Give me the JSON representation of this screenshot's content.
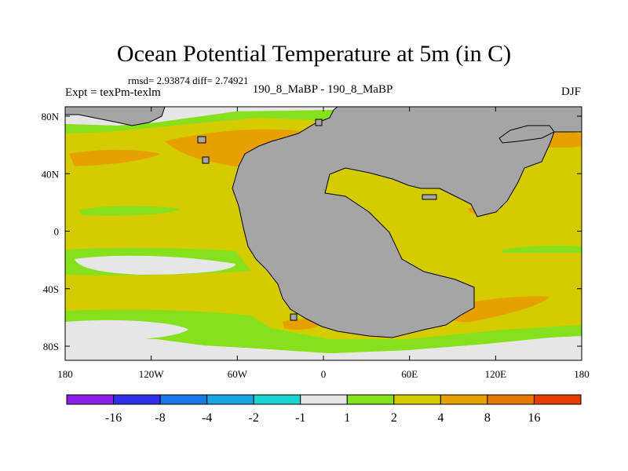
{
  "title": "Ocean Potential Temperature at 5m (in C)",
  "stats": "rmsd= 2.93874 diff= 2.74921",
  "left_label": "Expt = texPm-texlm",
  "center_label": "190_8_MaBP - 190_8_MaBP",
  "season": "DJF",
  "map": {
    "lon_ticks": [
      "180",
      "120W",
      "60W",
      "0",
      "60E",
      "120E",
      "180"
    ],
    "lat_ticks": [
      "80N",
      "40N",
      "0",
      "40S",
      "80S"
    ],
    "land_color": "#a5a5a5"
  },
  "colorbar": {
    "colors": [
      "#8a1ee6",
      "#2d30e6",
      "#1a78e6",
      "#19a6e0",
      "#19d4cf",
      "#e6e6e6",
      "#87e01e",
      "#d4cc00",
      "#e6a000",
      "#e67800",
      "#e63c00"
    ],
    "labels": [
      "-16",
      "-8",
      "-4",
      "-2",
      "-1",
      "1",
      "2",
      "4",
      "8",
      "16"
    ]
  }
}
